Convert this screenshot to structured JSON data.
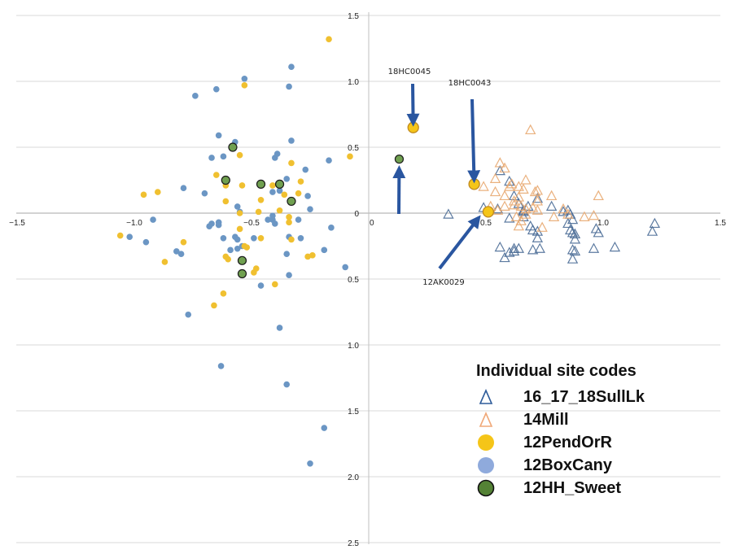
{
  "chart_data": {
    "type": "scatter",
    "title": "",
    "xlabel": "",
    "ylabel": "",
    "xlim": [
      -1.5,
      1.5
    ],
    "ylim": [
      -2.5,
      1.5
    ],
    "x_ticks": [
      -1.5,
      -1.0,
      -0.5,
      0,
      0.5,
      1.0,
      1.5
    ],
    "x_tick_labels": [
      "−1.5",
      "−1.0",
      "−0.5",
      "0",
      "0.5",
      "1.0",
      "1.5"
    ],
    "y_ticks": [
      1.5,
      1.0,
      0.5,
      0,
      -0.5,
      -1.0,
      -1.5,
      -2.0,
      -2.5
    ],
    "y_tick_labels": [
      "1.5",
      "1.0",
      "0.5",
      "0",
      "0.5",
      "1.0",
      "1.5",
      "2.0",
      "2.5"
    ],
    "grid": "horizontal",
    "legend": {
      "title": "Individual site codes",
      "position": "bottom-right",
      "entries": [
        {
          "name": "16_17_18SullLk",
          "marker": "triangle-open",
          "color": "#2e5c9a"
        },
        {
          "name": "14Mill",
          "marker": "triangle-open",
          "color": "#f0a878"
        },
        {
          "name": "12PendOrR",
          "marker": "circle",
          "color": "#f5c518"
        },
        {
          "name": "12BoxCany",
          "marker": "circle",
          "color": "#8faadc"
        },
        {
          "name": "12HH_Sweet",
          "marker": "circle-outlined",
          "color": "#548235"
        }
      ]
    },
    "series": [
      {
        "name": "12BoxCany",
        "marker": "circle",
        "color": "#6b96c4",
        "points": [
          [
            -0.33,
            1.11
          ],
          [
            -0.53,
            1.02
          ],
          [
            -0.34,
            0.96
          ],
          [
            -0.65,
            0.94
          ],
          [
            -0.74,
            0.89
          ],
          [
            -0.64,
            0.59
          ],
          [
            -0.57,
            0.54
          ],
          [
            -0.33,
            0.55
          ],
          [
            -0.67,
            0.42
          ],
          [
            -0.62,
            0.43
          ],
          [
            -0.4,
            0.42
          ],
          [
            -0.39,
            0.45
          ],
          [
            -0.17,
            0.4
          ],
          [
            -0.27,
            0.33
          ],
          [
            -0.35,
            0.26
          ],
          [
            -0.79,
            0.19
          ],
          [
            -0.7,
            0.15
          ],
          [
            -0.41,
            0.16
          ],
          [
            -0.38,
            0.17
          ],
          [
            -0.26,
            0.13
          ],
          [
            -0.25,
            0.03
          ],
          [
            -0.56,
            0.05
          ],
          [
            -0.55,
            0.01
          ],
          [
            -0.92,
            -0.05
          ],
          [
            -0.68,
            -0.1
          ],
          [
            -0.67,
            -0.08
          ],
          [
            -0.64,
            -0.07
          ],
          [
            -0.64,
            -0.09
          ],
          [
            -0.41,
            -0.05
          ],
          [
            -0.41,
            -0.02
          ],
          [
            -0.4,
            -0.08
          ],
          [
            -0.3,
            -0.05
          ],
          [
            -0.16,
            -0.11
          ],
          [
            -1.02,
            -0.18
          ],
          [
            -0.95,
            -0.22
          ],
          [
            -0.62,
            -0.19
          ],
          [
            -0.57,
            -0.18
          ],
          [
            -0.56,
            -0.2
          ],
          [
            -0.49,
            -0.19
          ],
          [
            -0.34,
            -0.18
          ],
          [
            -0.29,
            -0.19
          ],
          [
            -0.82,
            -0.29
          ],
          [
            -0.8,
            -0.31
          ],
          [
            -0.59,
            -0.28
          ],
          [
            -0.56,
            -0.27
          ],
          [
            -0.54,
            -0.25
          ],
          [
            -0.35,
            -0.31
          ],
          [
            -0.19,
            -0.28
          ],
          [
            -0.1,
            -0.41
          ],
          [
            -0.46,
            -0.55
          ],
          [
            -0.34,
            -0.47
          ],
          [
            -0.77,
            -0.77
          ],
          [
            -0.38,
            -0.87
          ],
          [
            -0.63,
            -1.16
          ],
          [
            -0.35,
            -1.3
          ],
          [
            -0.19,
            -1.63
          ],
          [
            -0.25,
            -1.9
          ],
          [
            -0.43,
            -0.05
          ]
        ]
      },
      {
        "name": "12PendOrR",
        "marker": "circle",
        "color": "#f0c030",
        "points": [
          [
            -0.17,
            1.32
          ],
          [
            -0.53,
            0.97
          ],
          [
            -0.55,
            0.44
          ],
          [
            -0.33,
            0.38
          ],
          [
            -0.08,
            0.43
          ],
          [
            -0.65,
            0.29
          ],
          [
            -0.61,
            0.21
          ],
          [
            -0.54,
            0.21
          ],
          [
            -0.41,
            0.21
          ],
          [
            -0.29,
            0.24
          ],
          [
            -0.36,
            0.14
          ],
          [
            -0.3,
            0.15
          ],
          [
            -0.96,
            0.14
          ],
          [
            -0.9,
            0.16
          ],
          [
            -0.61,
            0.09
          ],
          [
            -0.46,
            0.1
          ],
          [
            -0.38,
            0.02
          ],
          [
            -0.55,
            0.0
          ],
          [
            -0.47,
            0.01
          ],
          [
            -0.34,
            -0.03
          ],
          [
            -0.34,
            -0.07
          ],
          [
            -1.06,
            -0.17
          ],
          [
            -0.53,
            -0.25
          ],
          [
            -0.46,
            -0.19
          ],
          [
            -0.33,
            -0.2
          ],
          [
            -0.79,
            -0.22
          ],
          [
            -0.87,
            -0.37
          ],
          [
            -0.61,
            -0.33
          ],
          [
            -0.6,
            -0.35
          ],
          [
            -0.26,
            -0.33
          ],
          [
            -0.24,
            -0.32
          ],
          [
            -0.48,
            -0.42
          ],
          [
            -0.49,
            -0.45
          ],
          [
            -0.4,
            -0.54
          ],
          [
            -0.62,
            -0.61
          ],
          [
            -0.66,
            -0.7
          ],
          [
            -0.55,
            -0.12
          ],
          [
            -0.52,
            -0.26
          ]
        ]
      },
      {
        "name": "12HH_Sweet",
        "marker": "circle-outlined",
        "color": "#70a050",
        "points": [
          [
            -0.58,
            0.5
          ],
          [
            -0.61,
            0.25
          ],
          [
            -0.46,
            0.22
          ],
          [
            -0.38,
            0.22
          ],
          [
            -0.33,
            0.09
          ],
          [
            -0.54,
            -0.36
          ],
          [
            -0.54,
            -0.46
          ],
          [
            0.13,
            0.41
          ]
        ]
      },
      {
        "name": "16_17_18SullLk",
        "marker": "triangle-open",
        "color": "#4a6c96",
        "points": [
          [
            0.34,
            -0.01
          ],
          [
            0.49,
            0.04
          ],
          [
            0.56,
            0.32
          ],
          [
            0.6,
            0.24
          ],
          [
            0.62,
            0.13
          ],
          [
            0.64,
            0.07
          ],
          [
            0.66,
            0.02
          ],
          [
            0.66,
            0.01
          ],
          [
            0.68,
            0.05
          ],
          [
            0.72,
            0.11
          ],
          [
            0.78,
            0.05
          ],
          [
            0.83,
            0.01
          ],
          [
            0.85,
            0.02
          ],
          [
            0.86,
            -0.01
          ],
          [
            0.55,
            0.03
          ],
          [
            0.6,
            -0.04
          ],
          [
            0.66,
            -0.03
          ],
          [
            0.69,
            -0.1
          ],
          [
            0.7,
            -0.13
          ],
          [
            0.72,
            -0.14
          ],
          [
            0.72,
            -0.19
          ],
          [
            0.73,
            -0.27
          ],
          [
            0.85,
            -0.08
          ],
          [
            0.87,
            -0.05
          ],
          [
            0.86,
            -0.13
          ],
          [
            0.87,
            -0.15
          ],
          [
            0.88,
            -0.16
          ],
          [
            0.88,
            -0.2
          ],
          [
            0.87,
            -0.28
          ],
          [
            0.88,
            -0.29
          ],
          [
            0.87,
            -0.35
          ],
          [
            0.97,
            -0.12
          ],
          [
            0.98,
            -0.15
          ],
          [
            0.96,
            -0.27
          ],
          [
            1.05,
            -0.26
          ],
          [
            1.22,
            -0.08
          ],
          [
            1.21,
            -0.14
          ],
          [
            0.62,
            -0.27
          ],
          [
            0.62,
            -0.29
          ],
          [
            0.56,
            -0.26
          ],
          [
            0.6,
            -0.3
          ],
          [
            0.58,
            -0.34
          ],
          [
            0.64,
            -0.27
          ],
          [
            0.7,
            -0.28
          ]
        ]
      },
      {
        "name": "14Mill",
        "marker": "triangle-open",
        "color": "#e8a870",
        "points": [
          [
            0.69,
            0.63
          ],
          [
            0.56,
            0.38
          ],
          [
            0.58,
            0.34
          ],
          [
            0.54,
            0.26
          ],
          [
            0.49,
            0.2
          ],
          [
            0.61,
            0.22
          ],
          [
            0.64,
            0.2
          ],
          [
            0.6,
            0.2
          ],
          [
            0.67,
            0.25
          ],
          [
            0.66,
            0.18
          ],
          [
            0.54,
            0.16
          ],
          [
            0.64,
            0.12
          ],
          [
            0.71,
            0.16
          ],
          [
            0.72,
            0.17
          ],
          [
            0.78,
            0.13
          ],
          [
            0.98,
            0.13
          ],
          [
            0.52,
            0.05
          ],
          [
            0.55,
            0.02
          ],
          [
            0.58,
            0.05
          ],
          [
            0.62,
            0.06
          ],
          [
            0.65,
            0.05
          ],
          [
            0.67,
            0.03
          ],
          [
            0.7,
            0.04
          ],
          [
            0.72,
            0.02
          ],
          [
            0.83,
            0.03
          ],
          [
            0.63,
            -0.03
          ],
          [
            0.65,
            -0.06
          ],
          [
            0.67,
            -0.01
          ],
          [
            0.74,
            -0.11
          ],
          [
            0.85,
            -0.01
          ],
          [
            0.96,
            -0.02
          ],
          [
            0.72,
            0.09
          ],
          [
            0.62,
            0.09
          ],
          [
            0.58,
            0.13
          ],
          [
            0.64,
            -0.1
          ],
          [
            0.79,
            -0.03
          ],
          [
            0.92,
            -0.03
          ]
        ]
      }
    ],
    "highlighted_points": [
      {
        "series": "12PendOrR",
        "label": "18HC0045",
        "point": [
          0.19,
          0.65
        ]
      },
      {
        "series": "12PendOrR",
        "label": "18HC0043",
        "point": [
          0.45,
          0.22
        ]
      },
      {
        "series": "12PendOrR",
        "label": "12AK0029",
        "point": [
          0.51,
          0.01
        ]
      },
      {
        "series": "12HH_Sweet",
        "label": "",
        "point": [
          0.13,
          0.41
        ]
      }
    ],
    "annotations": [
      {
        "text": "18HC0045",
        "arrow_to": [
          0.19,
          0.65
        ],
        "arrow_from_dir": "above"
      },
      {
        "text": "18HC0043",
        "arrow_to": [
          0.45,
          0.22
        ],
        "arrow_from_dir": "above"
      },
      {
        "text": "12AK0029",
        "arrow_to": [
          0.48,
          -0.01
        ],
        "arrow_from_dir": "below-left"
      },
      {
        "text": "",
        "arrow_to": [
          0.13,
          0.37
        ],
        "arrow_from_dir": "below"
      }
    ]
  },
  "colors": {
    "arrow": "#2a56a0",
    "grid": "#d9d9d9",
    "axis": "#bfbfbf",
    "highlight_fill": "#f5c518",
    "highlight_stroke": "#c08a20"
  }
}
